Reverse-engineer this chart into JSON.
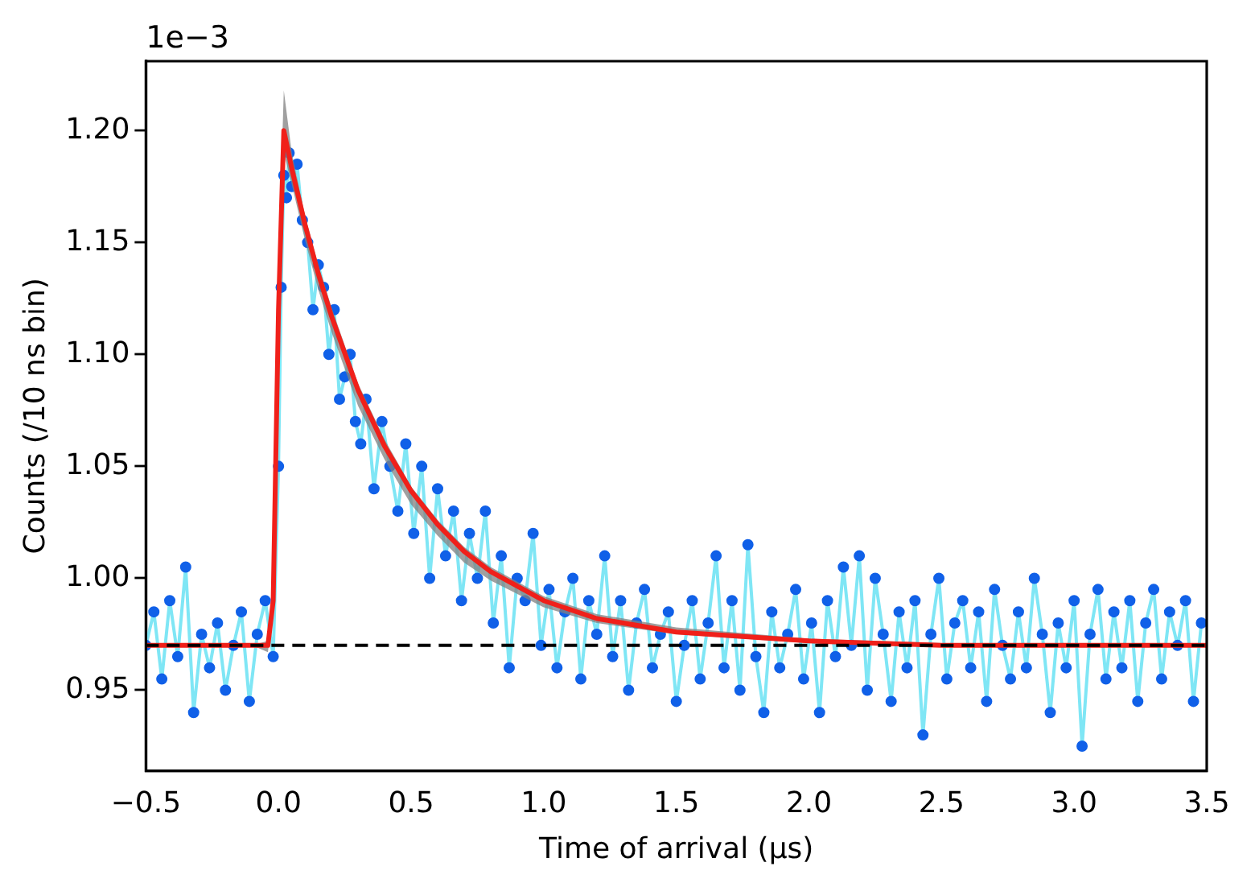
{
  "chart_data": {
    "type": "scatter",
    "xlabel": "Time of arrival (μs)",
    "ylabel": "Counts (/10 ns bin)",
    "annotations": [
      "1e−3"
    ],
    "xlim": [
      -0.5,
      3.5
    ],
    "xticks": [
      {
        "value": -0.5,
        "label": "−0.5"
      },
      {
        "value": 0,
        "label": "0.0"
      },
      {
        "value": 0.5,
        "label": "0.5"
      },
      {
        "value": 1,
        "label": "1.0"
      },
      {
        "value": 1.5,
        "label": "1.5"
      },
      {
        "value": 2,
        "label": "2.0"
      },
      {
        "value": 2.5,
        "label": "2.5"
      },
      {
        "value": 3,
        "label": "3.0"
      },
      {
        "value": 3.5,
        "label": "3.5"
      }
    ],
    "ylim": [
      0.914,
      1.231
    ],
    "yticks": [
      {
        "value": 0.95,
        "label": "0.95"
      },
      {
        "value": 1.0,
        "label": "1.00"
      },
      {
        "value": 1.05,
        "label": "1.05"
      },
      {
        "value": 1.1,
        "label": "1.10"
      },
      {
        "value": 1.15,
        "label": "1.15"
      },
      {
        "value": 1.2,
        "label": "1.20"
      }
    ],
    "ref_lines": [
      {
        "axis": "y",
        "value": 0.97,
        "color": "#000000",
        "line_style": "dashed"
      }
    ],
    "series": [
      {
        "type": "line",
        "marker": "none",
        "color": "#7fe6f5",
        "x": [
          -0.5,
          -0.47,
          -0.44,
          -0.41,
          -0.38,
          -0.35,
          -0.32,
          -0.29,
          -0.26,
          -0.23,
          -0.2,
          -0.17,
          -0.14,
          -0.11,
          -0.08,
          -0.05,
          -0.02,
          0,
          0.01,
          0.02,
          0.03,
          0.04,
          0.05,
          0.07,
          0.09,
          0.11,
          0.13,
          0.15,
          0.17,
          0.19,
          0.21,
          0.23,
          0.25,
          0.27,
          0.29,
          0.31,
          0.33,
          0.36,
          0.39,
          0.42,
          0.45,
          0.48,
          0.51,
          0.54,
          0.57,
          0.6,
          0.63,
          0.66,
          0.69,
          0.72,
          0.75,
          0.78,
          0.81,
          0.84,
          0.87,
          0.9,
          0.93,
          0.96,
          0.99,
          1.02,
          1.05,
          1.08,
          1.11,
          1.14,
          1.17,
          1.2,
          1.23,
          1.26,
          1.29,
          1.32,
          1.35,
          1.38,
          1.41,
          1.44,
          1.47,
          1.5,
          1.53,
          1.56,
          1.59,
          1.62,
          1.65,
          1.68,
          1.71,
          1.74,
          1.77,
          1.8,
          1.83,
          1.86,
          1.89,
          1.92,
          1.95,
          1.98,
          2.01,
          2.04,
          2.07,
          2.1,
          2.13,
          2.16,
          2.19,
          2.22,
          2.25,
          2.28,
          2.31,
          2.34,
          2.37,
          2.4,
          2.43,
          2.46,
          2.49,
          2.52,
          2.55,
          2.58,
          2.61,
          2.64,
          2.67,
          2.7,
          2.73,
          2.76,
          2.79,
          2.82,
          2.85,
          2.88,
          2.91,
          2.94,
          2.97,
          3,
          3.03,
          3.06,
          3.09,
          3.12,
          3.15,
          3.18,
          3.21,
          3.24,
          3.27,
          3.3,
          3.33,
          3.36,
          3.39,
          3.42,
          3.45,
          3.48
        ],
        "values": [
          0.97,
          0.985,
          0.955,
          0.99,
          0.965,
          1.005,
          0.94,
          0.975,
          0.96,
          0.98,
          0.95,
          0.97,
          0.985,
          0.945,
          0.975,
          0.99,
          0.965,
          1.05,
          1.13,
          1.18,
          1.17,
          1.19,
          1.175,
          1.185,
          1.16,
          1.15,
          1.12,
          1.14,
          1.13,
          1.1,
          1.12,
          1.08,
          1.09,
          1.1,
          1.07,
          1.06,
          1.08,
          1.04,
          1.07,
          1.05,
          1.03,
          1.06,
          1.02,
          1.05,
          1.0,
          1.04,
          1.01,
          1.03,
          0.99,
          1.02,
          1.0,
          1.03,
          0.98,
          1.01,
          0.96,
          1.0,
          0.99,
          1.02,
          0.97,
          0.995,
          0.96,
          0.985,
          1.0,
          0.955,
          0.99,
          0.975,
          1.01,
          0.965,
          0.99,
          0.95,
          0.98,
          0.995,
          0.96,
          0.975,
          0.985,
          0.945,
          0.97,
          0.99,
          0.955,
          0.98,
          1.01,
          0.96,
          0.99,
          0.95,
          1.015,
          0.965,
          0.94,
          0.985,
          0.96,
          0.975,
          0.995,
          0.955,
          0.98,
          0.94,
          0.99,
          0.965,
          1.005,
          0.97,
          1.01,
          0.95,
          1.0,
          0.975,
          0.945,
          0.985,
          0.96,
          0.99,
          0.93,
          0.975,
          1.0,
          0.955,
          0.98,
          0.99,
          0.96,
          0.985,
          0.945,
          0.995,
          0.97,
          0.955,
          0.985,
          0.96,
          1.0,
          0.975,
          0.94,
          0.98,
          0.96,
          0.99,
          0.925,
          0.975,
          0.995,
          0.955,
          0.985,
          0.96,
          0.99,
          0.945,
          0.98,
          0.995,
          0.955,
          0.985,
          0.97,
          0.99,
          0.945,
          0.98
        ]
      },
      {
        "marker": "circle",
        "color": "#1060e8",
        "x": [
          -0.5,
          -0.47,
          -0.44,
          -0.41,
          -0.38,
          -0.35,
          -0.32,
          -0.29,
          -0.26,
          -0.23,
          -0.2,
          -0.17,
          -0.14,
          -0.11,
          -0.08,
          -0.05,
          -0.02,
          0,
          0.01,
          0.02,
          0.03,
          0.04,
          0.05,
          0.07,
          0.09,
          0.11,
          0.13,
          0.15,
          0.17,
          0.19,
          0.21,
          0.23,
          0.25,
          0.27,
          0.29,
          0.31,
          0.33,
          0.36,
          0.39,
          0.42,
          0.45,
          0.48,
          0.51,
          0.54,
          0.57,
          0.6,
          0.63,
          0.66,
          0.69,
          0.72,
          0.75,
          0.78,
          0.81,
          0.84,
          0.87,
          0.9,
          0.93,
          0.96,
          0.99,
          1.02,
          1.05,
          1.08,
          1.11,
          1.14,
          1.17,
          1.2,
          1.23,
          1.26,
          1.29,
          1.32,
          1.35,
          1.38,
          1.41,
          1.44,
          1.47,
          1.5,
          1.53,
          1.56,
          1.59,
          1.62,
          1.65,
          1.68,
          1.71,
          1.74,
          1.77,
          1.8,
          1.83,
          1.86,
          1.89,
          1.92,
          1.95,
          1.98,
          2.01,
          2.04,
          2.07,
          2.1,
          2.13,
          2.16,
          2.19,
          2.22,
          2.25,
          2.28,
          2.31,
          2.34,
          2.37,
          2.4,
          2.43,
          2.46,
          2.49,
          2.52,
          2.55,
          2.58,
          2.61,
          2.64,
          2.67,
          2.7,
          2.73,
          2.76,
          2.79,
          2.82,
          2.85,
          2.88,
          2.91,
          2.94,
          2.97,
          3,
          3.03,
          3.06,
          3.09,
          3.12,
          3.15,
          3.18,
          3.21,
          3.24,
          3.27,
          3.3,
          3.33,
          3.36,
          3.39,
          3.42,
          3.45,
          3.48
        ],
        "values": [
          0.97,
          0.985,
          0.955,
          0.99,
          0.965,
          1.005,
          0.94,
          0.975,
          0.96,
          0.98,
          0.95,
          0.97,
          0.985,
          0.945,
          0.975,
          0.99,
          0.965,
          1.05,
          1.13,
          1.18,
          1.17,
          1.19,
          1.175,
          1.185,
          1.16,
          1.15,
          1.12,
          1.14,
          1.13,
          1.1,
          1.12,
          1.08,
          1.09,
          1.1,
          1.07,
          1.06,
          1.08,
          1.04,
          1.07,
          1.05,
          1.03,
          1.06,
          1.02,
          1.05,
          1.0,
          1.04,
          1.01,
          1.03,
          0.99,
          1.02,
          1.0,
          1.03,
          0.98,
          1.01,
          0.96,
          1.0,
          0.99,
          1.02,
          0.97,
          0.995,
          0.96,
          0.985,
          1.0,
          0.955,
          0.99,
          0.975,
          1.01,
          0.965,
          0.99,
          0.95,
          0.98,
          0.995,
          0.96,
          0.975,
          0.985,
          0.945,
          0.97,
          0.99,
          0.955,
          0.98,
          1.01,
          0.96,
          0.99,
          0.95,
          1.015,
          0.965,
          0.94,
          0.985,
          0.96,
          0.975,
          0.995,
          0.955,
          0.98,
          0.94,
          0.99,
          0.965,
          1.005,
          0.97,
          1.01,
          0.95,
          1.0,
          0.975,
          0.945,
          0.985,
          0.96,
          0.99,
          0.93,
          0.975,
          1.0,
          0.955,
          0.98,
          0.99,
          0.96,
          0.985,
          0.945,
          0.995,
          0.97,
          0.955,
          0.985,
          0.96,
          1.0,
          0.975,
          0.94,
          0.98,
          0.96,
          0.99,
          0.925,
          0.975,
          0.995,
          0.955,
          0.985,
          0.96,
          0.99,
          0.945,
          0.98,
          0.995,
          0.955,
          0.985,
          0.97,
          0.99,
          0.945,
          0.98
        ]
      },
      {
        "type": "line",
        "marker": "none",
        "color": "#f0201a",
        "x": [
          -0.5,
          -0.1,
          -0.04,
          -0.02,
          0,
          0.02,
          0.05,
          0.1,
          0.15,
          0.2,
          0.3,
          0.4,
          0.5,
          0.6,
          0.7,
          0.8,
          1.0,
          1.2,
          1.5,
          2.0,
          2.5,
          3.5
        ],
        "values": [
          0.97,
          0.97,
          0.97,
          0.99,
          1.12,
          1.2,
          1.183,
          1.158,
          1.136,
          1.117,
          1.084,
          1.059,
          1.039,
          1.024,
          1.012,
          1.003,
          0.99,
          0.982,
          0.976,
          0.972,
          0.97,
          0.97
        ],
        "lower": [
          0.97,
          0.97,
          0.967,
          0.985,
          1.1,
          1.19,
          1.176,
          1.151,
          1.129,
          1.11,
          1.077,
          1.053,
          1.033,
          1.019,
          1.007,
          0.999,
          0.987,
          0.98,
          0.975,
          0.971,
          0.97,
          0.97
        ],
        "upper": [
          0.97,
          0.97,
          0.972,
          0.995,
          1.14,
          1.218,
          1.19,
          1.162,
          1.14,
          1.121,
          1.087,
          1.062,
          1.041,
          1.026,
          1.014,
          1.005,
          0.992,
          0.984,
          0.978,
          0.973,
          0.971,
          0.97
        ]
      }
    ]
  }
}
